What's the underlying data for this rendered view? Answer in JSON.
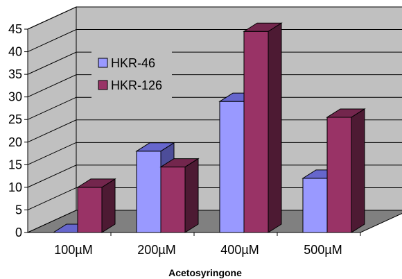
{
  "chart_data": {
    "type": "bar",
    "categories": [
      "100µM",
      "200µM",
      "400µM",
      "500µM"
    ],
    "series": [
      {
        "name": "HKR-46",
        "values": [
          0,
          18,
          29,
          12
        ]
      },
      {
        "name": "HKR-126",
        "values": [
          10,
          14.5,
          44.5,
          25.5
        ]
      }
    ],
    "title": "",
    "xlabel": "Acetosyringone",
    "ylabel": "",
    "ylim": [
      0,
      45
    ],
    "yticks": [
      0,
      5,
      10,
      15,
      20,
      25,
      30,
      35,
      40,
      45
    ],
    "grid": true,
    "three_d": true,
    "legend": "upper-left-inside",
    "colors": {
      "HKR-46": {
        "front": "#9999FF",
        "top": "#6666CC",
        "side": "#4D4D99"
      },
      "HKR-126": {
        "front": "#993366",
        "top": "#73264D",
        "side": "#4D1A33"
      },
      "wall": "#C0C0C0",
      "floor": "#808080"
    }
  }
}
